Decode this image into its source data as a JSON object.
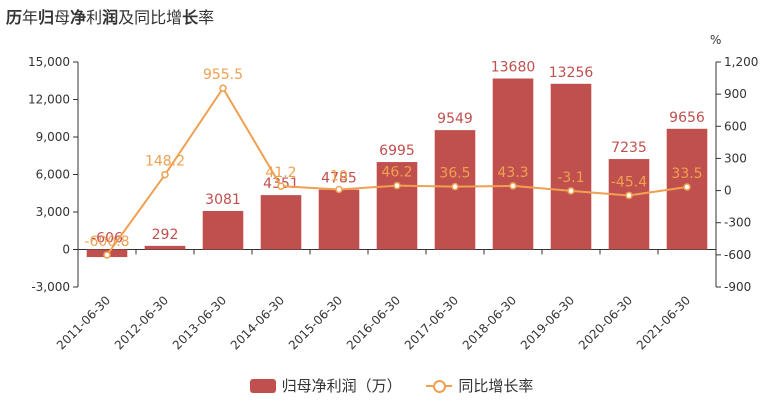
{
  "title": {
    "bold_a": "历",
    "normal_a": "年",
    "bold_b": "归",
    "normal_b": "母",
    "bold_c": "净",
    "normal_c": "利",
    "bold_d": "润",
    "normal_d": "及同比增",
    "bold_e": "长",
    "normal_e": "率"
  },
  "right_axis_unit": "%",
  "legend": [
    {
      "name": "归母净利润（万）",
      "color": "#c0504d",
      "kind": "bar"
    },
    {
      "name": "同比增长率",
      "color": "#f0a050",
      "kind": "line"
    }
  ],
  "chart_data": {
    "type": "bar",
    "categories": [
      "2011-06-30",
      "2012-06-30",
      "2013-06-30",
      "2014-06-30",
      "2015-06-30",
      "2016-06-30",
      "2017-06-30",
      "2018-06-30",
      "2019-06-30",
      "2020-06-30",
      "2021-06-30"
    ],
    "series": [
      {
        "name": "归母净利润（万）",
        "type": "bar",
        "axis": "left",
        "color": "#c0504d",
        "values": [
          -606,
          292,
          3081,
          4351,
          4785,
          6995,
          9549,
          13680,
          13256,
          7235,
          9656
        ],
        "labels": [
          "-606",
          "292",
          "3081",
          "4351",
          "4785",
          "6995",
          "9549",
          "13680",
          "13256",
          "7235",
          "9656"
        ]
      },
      {
        "name": "同比增长率",
        "type": "line",
        "axis": "right",
        "color": "#f0a050",
        "values": [
          -600.8,
          148.2,
          955.5,
          41.2,
          10,
          46.2,
          36.5,
          43.3,
          -3.1,
          -45.4,
          33.5
        ],
        "labels": [
          "-600.8",
          "148.2",
          "955.5",
          "41.2",
          "10",
          "46.2",
          "36.5",
          "43.3",
          "-3.1",
          "-45.4",
          "33.5"
        ]
      }
    ],
    "y_left": {
      "ticks": [
        "15,000",
        "12,000",
        "9,000",
        "6,000",
        "3,000",
        "0",
        "-3,000"
      ],
      "range": [
        -3000,
        15000
      ]
    },
    "y_right": {
      "ticks": [
        "1,200",
        "900",
        "600",
        "300",
        "0",
        "-300",
        "-600",
        "-900"
      ],
      "range": [
        -900,
        1200
      ]
    },
    "legend_position": "bottom",
    "grid": false
  }
}
